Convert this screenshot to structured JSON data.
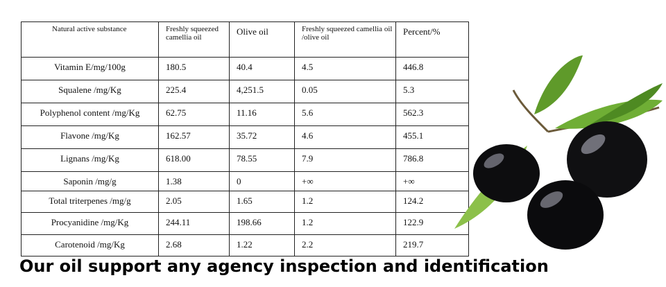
{
  "table": {
    "header": [
      "Natural active substance",
      "Freshly squeezed camellia oil",
      "Olive oil",
      "Freshly squeezed camellia oil /olive oil",
      "Percent/%"
    ],
    "rows": [
      [
        "Vitamin E/mg/100g",
        "180.5",
        "40.4",
        "4.5",
        "446.8"
      ],
      [
        "Squalene /mg/Kg",
        "225.4",
        "4,251.5",
        "0.05",
        "5.3"
      ],
      [
        "Polyphenol content /mg/Kg",
        "62.75",
        "11.16",
        "5.6",
        "562.3"
      ],
      [
        "Flavone /mg/Kg",
        "162.57",
        "35.72",
        "4.6",
        "455.1"
      ],
      [
        "Lignans /mg/Kg",
        "618.00",
        "78.55",
        "7.9",
        "786.8"
      ],
      [
        "Saponin /mg/g",
        "1.38",
        "0",
        "+∞",
        "+∞"
      ],
      [
        "Total triterpenes /mg/g",
        "2.05",
        "1.65",
        "1.2",
        "124.2"
      ],
      [
        "Procyanidine /mg/Kg",
        "244.11",
        "198.66",
        "1.2",
        "122.9"
      ],
      [
        "Carotenoid /mg/Kg",
        "2.68",
        "1.22",
        "2.2",
        "219.7"
      ]
    ]
  },
  "footer": {
    "caption": "Our oil support any agency inspection and identification"
  }
}
